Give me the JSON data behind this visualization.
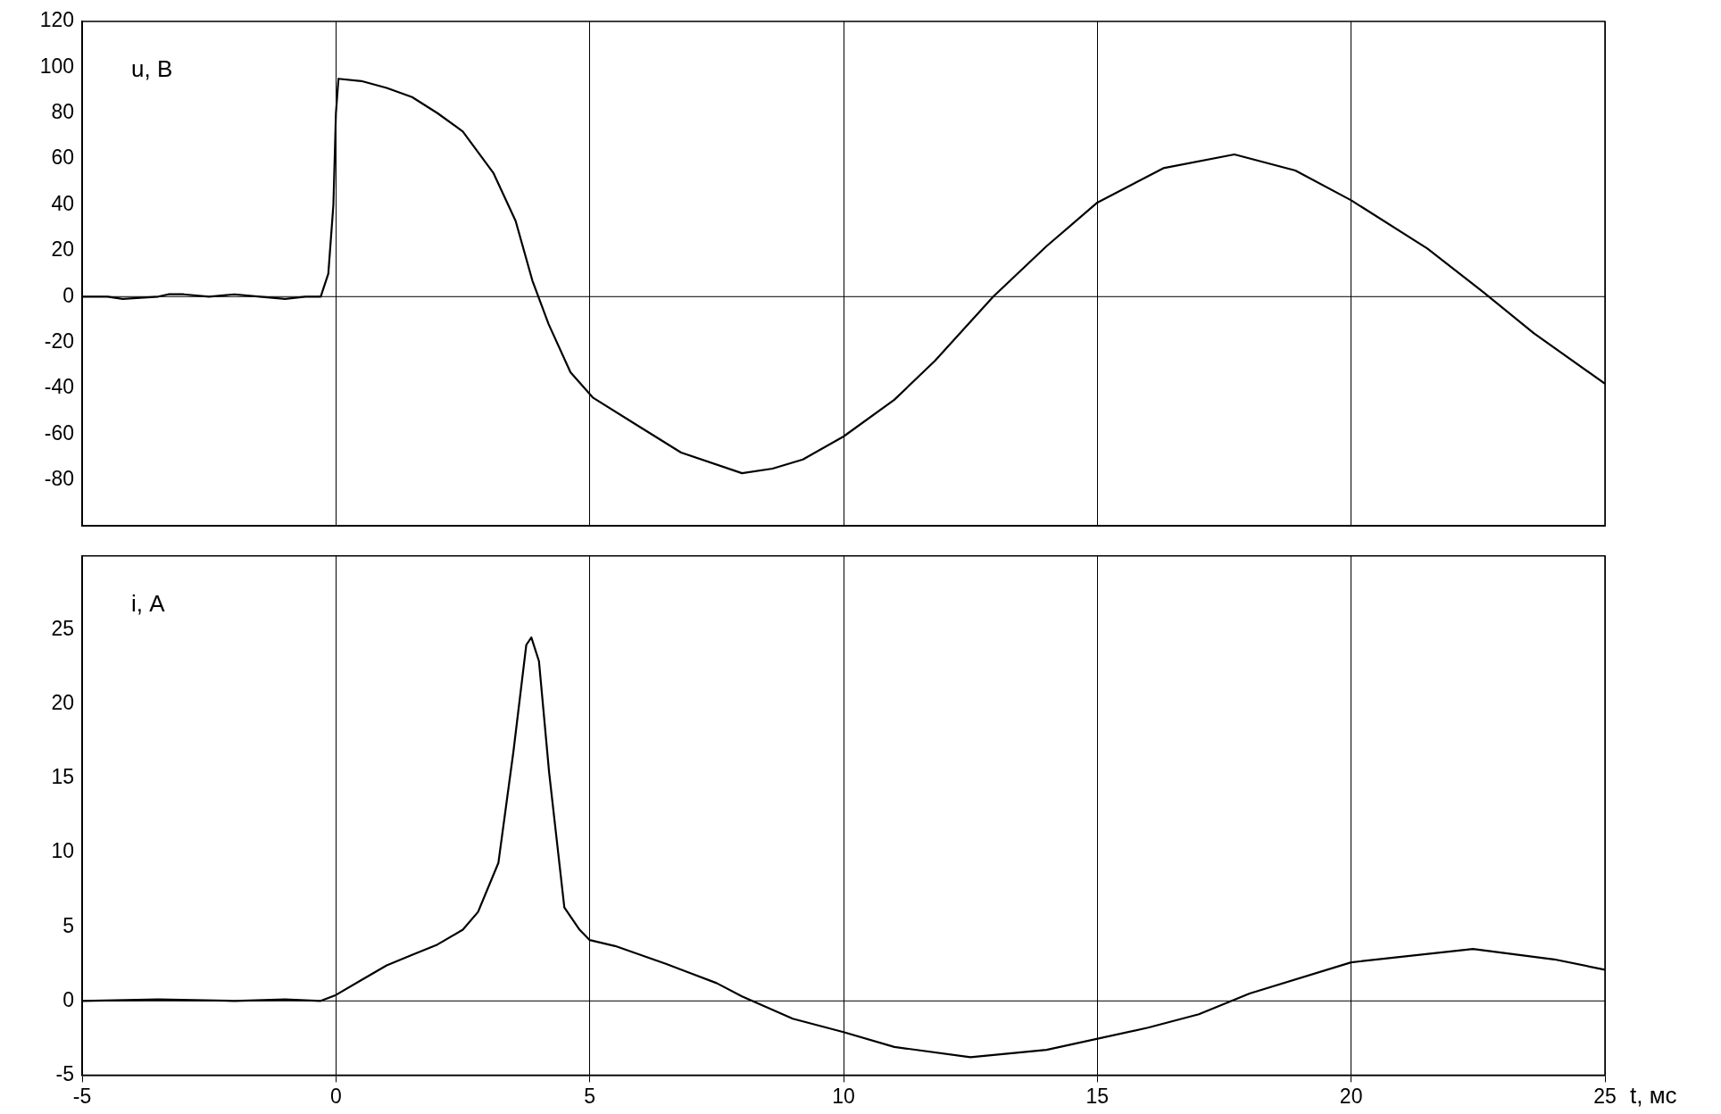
{
  "chart_data": [
    {
      "type": "line",
      "ylabel": "u, В",
      "xlim": [
        -5,
        25
      ],
      "xticks": [
        -5,
        0,
        5,
        10,
        15,
        20,
        25
      ],
      "ylim": [
        -100,
        120
      ],
      "yticks": [
        -80,
        -60,
        -40,
        -20,
        0,
        20,
        40,
        60,
        80,
        100,
        120
      ],
      "tick_labels": "y",
      "grid": "x",
      "ref_lines": [
        {
          "axis": "y",
          "value": 0,
          "color": "#000000"
        }
      ],
      "series": [
        {
          "color": "#000000",
          "x": [
            -5,
            -4.5,
            -4.2,
            -3.5,
            -3.3,
            -3,
            -2.5,
            -2,
            -1.5,
            -1,
            -0.6,
            -0.3,
            -0.15,
            -0.05,
            0,
            0.05,
            0.5,
            1,
            1.5,
            2,
            2.5,
            3.1,
            3.54,
            3.87,
            4.19,
            4.62,
            5.06,
            6,
            6.8,
            8,
            8.6,
            9.2,
            10,
            11,
            11.8,
            12.95,
            14,
            15,
            16.3,
            17.7,
            18.9,
            20,
            21.5,
            22.6,
            23.6,
            25
          ],
          "values": [
            0,
            0,
            -1,
            0,
            1,
            1,
            0,
            1,
            0,
            -1,
            0,
            0,
            10,
            40,
            80,
            95,
            94,
            91,
            87,
            80,
            72,
            54,
            33,
            7,
            -12,
            -33,
            -44,
            -57,
            -68,
            -77,
            -75,
            -71,
            -61,
            -45,
            -28,
            0,
            22,
            41,
            56,
            62,
            55,
            42,
            21,
            2,
            -16,
            -38
          ]
        }
      ]
    },
    {
      "type": "line",
      "ylabel": "i, А",
      "xlabel": "t, мс",
      "xlim": [
        -5,
        25
      ],
      "xticks": [
        -5,
        0,
        5,
        10,
        15,
        20,
        25
      ],
      "ylim": [
        -5,
        30
      ],
      "yticks": [
        -5,
        0,
        5,
        10,
        15,
        20,
        25
      ],
      "grid": "x",
      "ref_lines": [
        {
          "axis": "y",
          "value": 0,
          "color": "#000000"
        }
      ],
      "series": [
        {
          "color": "#000000",
          "x": [
            -5,
            -3.5,
            -2,
            -1,
            -0.3,
            0,
            0.5,
            1,
            1.5,
            2,
            2.5,
            2.8,
            3.2,
            3.5,
            3.75,
            3.85,
            4,
            4.2,
            4.5,
            4.8,
            5,
            5.5,
            6.5,
            7.5,
            8,
            9,
            10,
            11,
            12.5,
            14,
            16,
            17,
            18,
            20,
            22.4,
            24,
            25
          ],
          "values": [
            0,
            0.1,
            0,
            0.1,
            0,
            0.4,
            1.4,
            2.4,
            3.1,
            3.8,
            4.8,
            6,
            9.3,
            16.9,
            24,
            24.5,
            22.9,
            15.4,
            6.3,
            4.8,
            4.1,
            3.7,
            2.5,
            1.2,
            0.3,
            -1.2,
            -2.1,
            -3.1,
            -3.8,
            -3.3,
            -1.8,
            -0.9,
            0.5,
            2.6,
            3.5,
            2.8,
            2.1
          ]
        }
      ]
    }
  ]
}
